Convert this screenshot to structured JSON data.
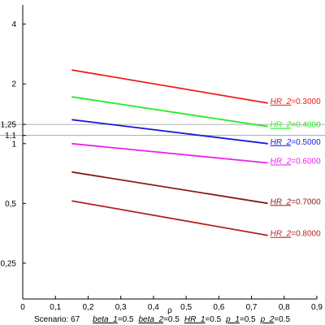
{
  "chart_data": {
    "type": "line",
    "xlabel": "ρ",
    "ylabel": "",
    "xlim": [
      0,
      0.9
    ],
    "ylim": [
      0.165,
      5
    ],
    "yscale": "log",
    "x_ticks": [
      0,
      0.1,
      0.2,
      0.3,
      0.4,
      0.5,
      0.6,
      0.7,
      0.8,
      0.9
    ],
    "x_tick_labels": [
      "0",
      "0,1",
      "0,2",
      "0,3",
      "0,4",
      "0,5",
      "0,6",
      "0,7",
      "0,8",
      "0,9"
    ],
    "y_ticks": [
      0.25,
      0.5,
      1,
      1.1,
      1.25,
      2,
      4
    ],
    "y_tick_labels": [
      "0,25",
      "0,5",
      "1",
      "1,1",
      "1,25",
      "2",
      "4"
    ],
    "reference_lines": [
      1.1,
      1.25
    ],
    "grid": false,
    "series": [
      {
        "name": "HR_2",
        "label_value": "0.3000",
        "color": "#ee1c1c",
        "x": [
          0.15,
          0.75
        ],
        "y": [
          2.35,
          1.6
        ]
      },
      {
        "name": "HR_2",
        "label_value": "0.4000",
        "color": "#22ee22",
        "x": [
          0.15,
          0.75
        ],
        "y": [
          1.72,
          1.22
        ]
      },
      {
        "name": "HR_2",
        "label_value": "0.5000",
        "color": "#1a1ad6",
        "x": [
          0.15,
          0.75
        ],
        "y": [
          1.32,
          1.0
        ]
      },
      {
        "name": "HR_2",
        "label_value": "0.6000",
        "color": "#ee22ee",
        "x": [
          0.15,
          0.75
        ],
        "y": [
          1.0,
          0.8
        ]
      },
      {
        "name": "HR_2",
        "label_value": "0.7000",
        "color": "#8b1a1a",
        "x": [
          0.15,
          0.75
        ],
        "y": [
          0.72,
          0.5
        ]
      },
      {
        "name": "HR_2",
        "label_value": "0.8000",
        "color": "#b22222",
        "x": [
          0.15,
          0.75
        ],
        "y": [
          0.515,
          0.345
        ]
      }
    ],
    "scenario_text": "Scenario: 67",
    "parameters": [
      {
        "name": "beta_1",
        "value": "0.5"
      },
      {
        "name": "beta_2",
        "value": "0.5"
      },
      {
        "name": "HR_1",
        "value": "0.5"
      },
      {
        "name": "p_1",
        "value": "0.5"
      },
      {
        "name": "p_2",
        "value": "0.5"
      }
    ]
  }
}
